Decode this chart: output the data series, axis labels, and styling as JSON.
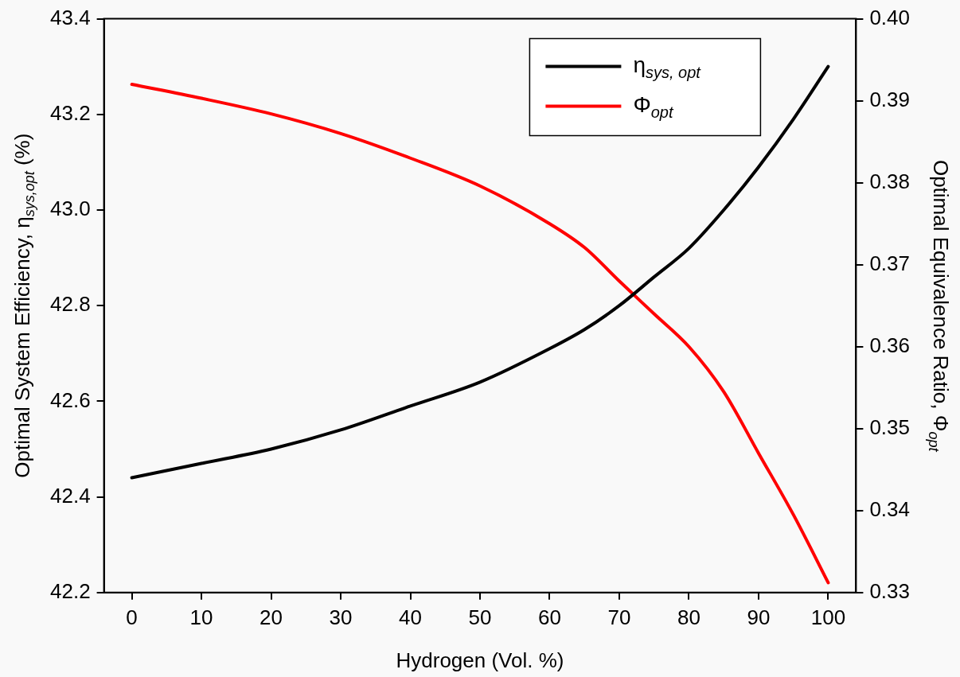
{
  "chart_data": {
    "type": "line",
    "xlabel": "Hydrogen (Vol. %)",
    "ylabel": "Optimal System Efficiency, η$_{sys,opt}$ (%)",
    "y2label": "Optimal Equivalence Ratio, Φ$_{opt}$",
    "x": [
      0,
      10,
      20,
      30,
      40,
      50,
      60,
      65,
      70,
      75,
      80,
      85,
      90,
      95,
      100
    ],
    "series": [
      {
        "name": "η$_{sys, opt}$",
        "color": "#000000",
        "values": [
          42.44,
          42.47,
          42.5,
          42.54,
          42.59,
          42.64,
          42.71,
          42.75,
          42.8,
          42.86,
          42.92,
          43.0,
          43.09,
          43.19,
          43.3
        ]
      },
      {
        "name": "Φ$_{opt}$",
        "color": "#ff0000",
        "axis": "y2",
        "values": [
          0.392,
          0.3903,
          0.3884,
          0.386,
          0.383,
          0.3796,
          0.375,
          0.3721,
          0.368,
          0.364,
          0.36,
          0.3545,
          0.347,
          0.3395,
          0.3312
        ]
      }
    ],
    "xlim": [
      -4,
      104
    ],
    "xticks": [
      0,
      10,
      20,
      30,
      40,
      50,
      60,
      70,
      80,
      90,
      100
    ],
    "ylim": [
      42.2,
      43.4
    ],
    "yticks": [
      42.2,
      42.4,
      42.6,
      42.8,
      {
        "value": 43,
        "label": "43.0"
      },
      43.2,
      43.4
    ],
    "y2lim": [
      0.33,
      0.4
    ],
    "y2ticks": [
      0.33,
      0.34,
      0.35,
      0.36,
      0.37,
      0.38,
      0.39,
      {
        "value": 0.4,
        "label": "0.40"
      }
    ],
    "grid": false,
    "legend": "top right",
    "marker": "none",
    "line_style": "solid"
  }
}
